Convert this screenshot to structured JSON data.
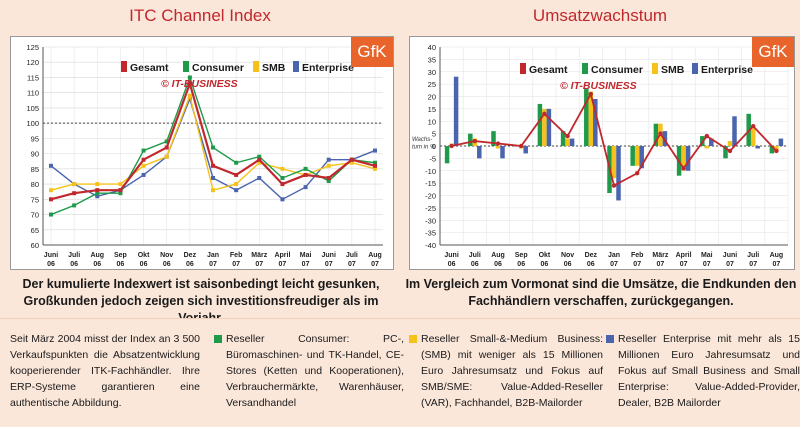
{
  "left_chart": {
    "title": "ITC Channel Index",
    "logo": "GfK",
    "copyright": "© IT-BUSINESS",
    "caption_line1": "Der kumulierte Indexwert ist saisonbedingt leicht gesunken,",
    "caption_line2": "Großkunden jedoch zeigen sich investitionsfreudiger als im Vorjahr."
  },
  "right_chart": {
    "title": "Umsatzwachstum",
    "logo": "GfK",
    "copyright": "© IT-BUSINESS",
    "y_axis_note_line1": "Wachs-",
    "y_axis_note_line2": "tum in %",
    "caption_line1": "Im Vergleich zum Vormonat sind die Umsätze, die Endkunden den",
    "caption_line2": "Fachhändlern verschaffen, zurückgegangen."
  },
  "notes": {
    "n1": "Seit März 2004 misst der Index an 3 500 Verkaufspunkten die Absatzentwicklung kooperierender ITK-Fachhändler. Ihre ERP-Systeme garantieren eine authentische Abbildung.",
    "n2": "Reseller Consumer: PC-, Büromaschinen- und TK-Handel, CE-Stores (Ketten und Kooperationen), Verbrauchermärkte, Warenhäuser, Versandhandel",
    "n3": "Reseller Small-&-Medium Business: (SMB) mit weniger als 15 Millionen Euro Jahresumsatz und Fokus auf SMB/SME: Value-Added-Reseller (VAR), Fachhandel, B2B-Mailorder",
    "n4": "Reseller Enterprise mit mehr als 15 Millionen Euro Jahresumsatz und Fokus auf Small Business and Small Enterprise: Value-Added-Provider, Dealer, B2B Mailorder"
  },
  "colors": {
    "gesamt": "#c0282d",
    "consumer": "#1e9a4a",
    "smb": "#f5c21b",
    "enterprise": "#4a64ad",
    "title": "#c0282d",
    "gfk": "#e8642a"
  },
  "chart_data": [
    {
      "type": "line",
      "categories": [
        [
          "Juni",
          "06"
        ],
        [
          "Juli",
          "06"
        ],
        [
          "Aug",
          "06"
        ],
        [
          "Sep",
          "06"
        ],
        [
          "Okt",
          "06"
        ],
        [
          "Nov",
          "06"
        ],
        [
          "Dez",
          "06"
        ],
        [
          "Jan",
          "07"
        ],
        [
          "Feb",
          "07"
        ],
        [
          "März",
          "07"
        ],
        [
          "April",
          "07"
        ],
        [
          "Mai",
          "07"
        ],
        [
          "Juni",
          "07"
        ],
        [
          "Juli",
          "07"
        ],
        [
          "Aug",
          "07"
        ]
      ],
      "ylim": [
        60,
        125
      ],
      "yticks": [
        60,
        65,
        70,
        75,
        80,
        85,
        90,
        95,
        100,
        105,
        110,
        115,
        120,
        125
      ],
      "reference_line": 100,
      "series": [
        {
          "name": "Gesamt",
          "color": "#c0282d",
          "values": [
            75,
            77,
            78,
            78,
            88,
            92,
            113,
            86,
            83,
            88,
            80,
            83,
            82,
            88,
            86
          ]
        },
        {
          "name": "Consumer",
          "color": "#1e9a4a",
          "values": [
            70,
            73,
            77,
            77,
            91,
            94,
            115,
            92,
            87,
            89,
            82,
            85,
            81,
            88,
            87
          ]
        },
        {
          "name": "SMB",
          "color": "#f5c21b",
          "values": [
            78,
            80,
            80,
            80,
            86,
            89,
            109,
            78,
            80,
            87,
            85,
            83,
            86,
            87,
            85
          ]
        },
        {
          "name": "Enterprise",
          "color": "#4a64ad",
          "values": [
            86,
            80,
            76,
            78,
            83,
            89,
            108,
            82,
            78,
            82,
            75,
            79,
            88,
            88,
            91
          ]
        }
      ]
    },
    {
      "type": "bar",
      "categories": [
        [
          "Juni",
          "06"
        ],
        [
          "Juli",
          "06"
        ],
        [
          "Aug",
          "06"
        ],
        [
          "Sep",
          "06"
        ],
        [
          "Okt",
          "06"
        ],
        [
          "Nov",
          "06"
        ],
        [
          "Dez",
          "06"
        ],
        [
          "Jan",
          "07"
        ],
        [
          "Feb",
          "07"
        ],
        [
          "März",
          "07"
        ],
        [
          "April",
          "07"
        ],
        [
          "Mai",
          "07"
        ],
        [
          "Juni",
          "07"
        ],
        [
          "Juli",
          "07"
        ],
        [
          "Aug",
          "07"
        ]
      ],
      "ylim": [
        -40,
        40
      ],
      "yticks": [
        -40,
        -35,
        -30,
        -25,
        -20,
        -15,
        -10,
        -5,
        0,
        5,
        10,
        15,
        20,
        25,
        30,
        35,
        40
      ],
      "series": [
        {
          "name": "Gesamt",
          "color": "#c0282d",
          "kind": "line",
          "values": [
            0,
            2,
            1,
            0,
            13,
            4,
            21,
            -16,
            -11,
            5,
            -9,
            4,
            -2,
            8,
            -2
          ]
        },
        {
          "name": "Consumer",
          "color": "#1e9a4a",
          "kind": "bar",
          "values": [
            -7,
            5,
            6,
            0,
            17,
            6,
            23,
            -19,
            -8,
            9,
            -12,
            4,
            -5,
            13,
            -3
          ]
        },
        {
          "name": "SMB",
          "color": "#f5c21b",
          "kind": "bar",
          "values": [
            1,
            3,
            -1,
            -1,
            15,
            3,
            22,
            -13,
            -8,
            9,
            -10,
            -1,
            2,
            7,
            -2
          ]
        },
        {
          "name": "Enterprise",
          "color": "#4a64ad",
          "kind": "bar",
          "values": [
            28,
            -5,
            -5,
            -3,
            15,
            3,
            19,
            -22,
            -9,
            6,
            -10,
            3,
            12,
            -1,
            3
          ]
        }
      ]
    }
  ]
}
